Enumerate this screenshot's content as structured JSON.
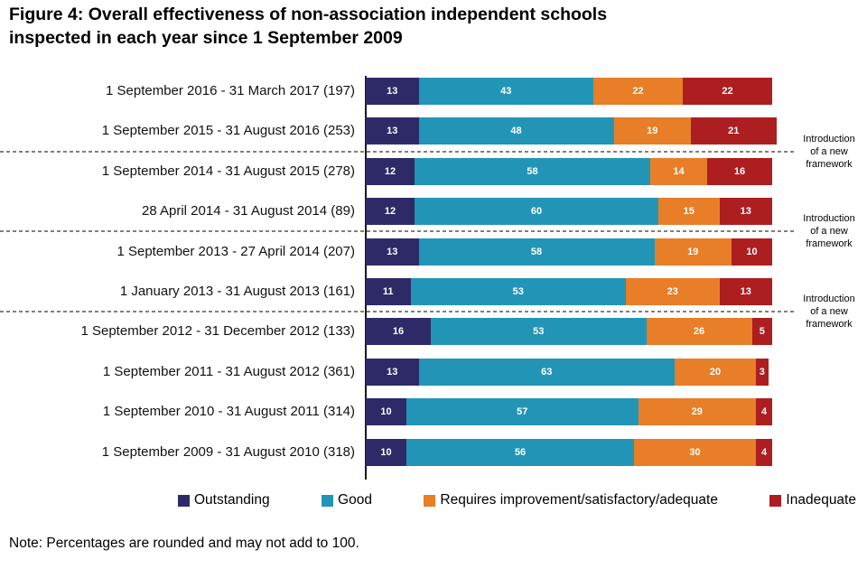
{
  "title_line1": "Figure 4: Overall effectiveness of non-association independent schools",
  "title_line2": "inspected in each year since 1 September 2009",
  "note": "Note: Percentages are rounded and may not add to 100.",
  "annotation_lines": [
    "Introduction",
    "of a new",
    "framework"
  ],
  "colors": {
    "outstanding": "#2E2A68",
    "good": "#2295B6",
    "requires_improvement": "#E87E27",
    "inadequate": "#AD1E21",
    "axis": "#1A1A1A",
    "separator": "#7F7F7F"
  },
  "legend": [
    {
      "label": "Outstanding",
      "color": "#2E2A68"
    },
    {
      "label": "Good",
      "color": "#2295B6"
    },
    {
      "label": "Requires improvement/satisfactory/adequate",
      "color": "#E87E27"
    },
    {
      "label": "Inadequate",
      "color": "#AD1E21"
    }
  ],
  "chart_data": {
    "type": "bar",
    "variant": "horizontal_stacked",
    "unit": "percent",
    "xlim": [
      0,
      100
    ],
    "grid": false,
    "legend_position": "bottom",
    "title": "Figure 4: Overall effectiveness of non-association independent schools inspected in each year since 1 September 2009",
    "categories": [
      "1 September 2016 - 31 March 2017 (197)",
      "1 September 2015 - 31 August 2016 (253)",
      "1 September 2014 - 31 August 2015 (278)",
      "28 April 2014 - 31 August 2014 (89)",
      "1 September 2013 - 27 April 2014 (207)",
      "1 January 2013 - 31 August 2013 (161)",
      "1 September 2012 - 31 December 2012 (133)",
      "1 September 2011 - 31 August 2012 (361)",
      "1 September 2010 - 31 August 2011 (314)",
      "1 September 2009 - 31 August 2010 (318)"
    ],
    "series": [
      {
        "name": "Outstanding",
        "color": "#2E2A68",
        "values": [
          13,
          13,
          12,
          12,
          13,
          11,
          16,
          13,
          10,
          10
        ]
      },
      {
        "name": "Good",
        "color": "#2295B6",
        "values": [
          43,
          48,
          58,
          60,
          58,
          53,
          53,
          63,
          57,
          56
        ]
      },
      {
        "name": "Requires improvement/satisfactory/adequate",
        "color": "#E87E27",
        "values": [
          22,
          19,
          14,
          15,
          19,
          23,
          26,
          20,
          29,
          30
        ]
      },
      {
        "name": "Inadequate",
        "color": "#AD1E21",
        "values": [
          22,
          21,
          16,
          13,
          10,
          13,
          5,
          3,
          4,
          4
        ]
      }
    ],
    "separators": [
      {
        "after_category_index": 1,
        "annotation": "Introduction of a new framework"
      },
      {
        "after_category_index": 3,
        "annotation": "Introduction of a new framework"
      },
      {
        "after_category_index": 5,
        "annotation": "Introduction of a new framework"
      }
    ]
  }
}
